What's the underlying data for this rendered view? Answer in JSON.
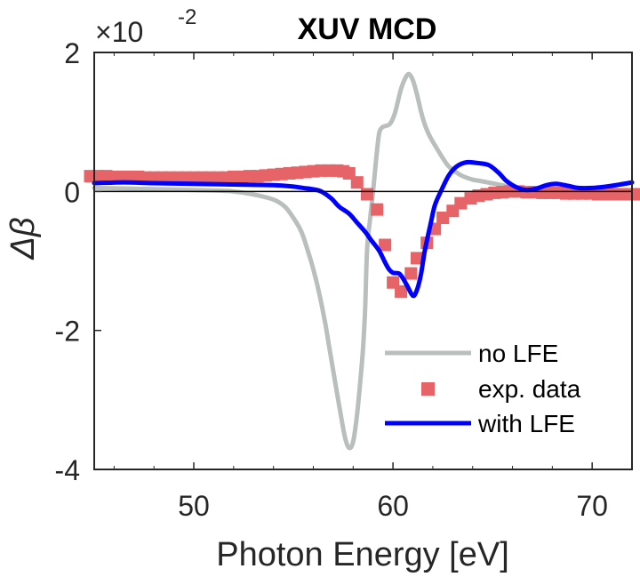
{
  "chart_data": {
    "type": "line",
    "title": "XUV MCD",
    "xlabel": "Photon Energy [eV]",
    "ylabel": "Δβ",
    "y_multiplier_label": {
      "base": "×10",
      "exponent": "-2"
    },
    "xlim": [
      45,
      72
    ],
    "ylim": [
      -4,
      2
    ],
    "xticks": [
      50,
      60,
      70
    ],
    "xtick_labels": [
      "50",
      "60",
      "70"
    ],
    "xminor_step": 1.2,
    "yticks": [
      -4,
      -2,
      0,
      2
    ],
    "ytick_labels": [
      "-4",
      "-2",
      "0",
      "2"
    ],
    "zero_line": true,
    "grid": false,
    "legend_position": "bottom-right",
    "series": [
      {
        "name": "no LFE",
        "style": "line",
        "color": "#b9bfbd",
        "x": [
          45,
          47,
          50,
          52,
          53.7,
          54.5,
          55.0,
          55.4,
          55.7,
          56.0,
          56.3,
          56.6,
          56.8,
          57.1,
          57.4,
          57.6,
          57.8,
          58.0,
          58.2,
          58.4,
          58.5,
          58.6,
          58.7,
          58.85,
          59.0,
          59.1,
          59.15,
          59.3,
          59.45,
          59.6,
          59.8,
          59.95,
          60.1,
          60.25,
          60.4,
          60.6,
          60.8,
          61.0,
          61.2,
          61.5,
          61.8,
          62.2,
          62.5,
          62.8,
          63.2,
          63.5,
          64.0,
          64.4,
          65.3,
          66.2,
          67.5,
          69,
          72
        ],
        "values": [
          0.05,
          0.04,
          0.02,
          0.0,
          -0.09,
          -0.2,
          -0.38,
          -0.58,
          -0.83,
          -1.12,
          -1.47,
          -1.9,
          -2.24,
          -2.75,
          -3.25,
          -3.55,
          -3.69,
          -3.6,
          -3.2,
          -2.6,
          -2.24,
          -1.7,
          -0.83,
          -0.4,
          0.0,
          0.3,
          0.45,
          0.83,
          0.92,
          0.94,
          0.96,
          1.02,
          1.13,
          1.3,
          1.47,
          1.62,
          1.69,
          1.6,
          1.4,
          1.05,
          0.82,
          0.62,
          0.48,
          0.36,
          0.27,
          0.22,
          0.17,
          0.15,
          0.1,
          0.05,
          0.02,
          0.01,
          0.0
        ]
      },
      {
        "name": "exp. data",
        "style": "square-markers",
        "color": "#e66467",
        "x": [
          44.8,
          45.2,
          45.6,
          46.0,
          46.4,
          46.8,
          47.2,
          47.6,
          48.0,
          48.4,
          48.8,
          49.2,
          49.6,
          50.0,
          50.4,
          50.8,
          51.2,
          51.6,
          52.0,
          52.4,
          52.8,
          53.2,
          53.6,
          54.0,
          54.4,
          54.8,
          55.2,
          55.6,
          56.0,
          56.4,
          56.8,
          57.2,
          57.5,
          57.8,
          58.2,
          58.7,
          59.2,
          59.6,
          60.0,
          60.4,
          60.9,
          61.2,
          61.7,
          62.1,
          62.5,
          63.0,
          63.4,
          63.9,
          64.3,
          64.7,
          65.1,
          65.5,
          65.9,
          66.3,
          66.7,
          67.1,
          67.5,
          67.9,
          68.3,
          68.7,
          69.1,
          69.5,
          69.9,
          70.3,
          70.7,
          71.1,
          71.5,
          71.9,
          72.2
        ],
        "values": [
          0.22,
          0.22,
          0.22,
          0.21,
          0.21,
          0.21,
          0.21,
          0.2,
          0.2,
          0.2,
          0.2,
          0.2,
          0.2,
          0.2,
          0.2,
          0.2,
          0.2,
          0.2,
          0.21,
          0.21,
          0.22,
          0.22,
          0.23,
          0.24,
          0.25,
          0.26,
          0.27,
          0.28,
          0.29,
          0.3,
          0.3,
          0.3,
          0.29,
          0.26,
          0.13,
          -0.04,
          -0.26,
          -0.77,
          -1.31,
          -1.44,
          -1.18,
          -0.96,
          -0.74,
          -0.54,
          -0.38,
          -0.28,
          -0.17,
          -0.1,
          -0.06,
          -0.04,
          -0.02,
          -0.01,
          0.0,
          0.0,
          -0.01,
          -0.01,
          -0.02,
          -0.02,
          -0.02,
          -0.03,
          -0.03,
          -0.03,
          -0.03,
          -0.04,
          -0.04,
          -0.04,
          -0.04,
          -0.04,
          -0.04
        ]
      },
      {
        "name": "with LFE",
        "style": "line",
        "color": "#0000ff",
        "x": [
          45,
          46.5,
          48,
          50,
          52,
          54,
          55.0,
          55.5,
          56.0,
          56.4,
          56.9,
          57.3,
          57.8,
          58.2,
          58.6,
          58.9,
          59.3,
          59.6,
          59.8,
          60.0,
          60.3,
          60.5,
          60.7,
          61.0,
          61.2,
          61.4,
          61.6,
          61.9,
          62.1,
          62.4,
          62.8,
          63.2,
          63.7,
          64.2,
          64.8,
          65.3,
          65.7,
          66.2,
          66.7,
          67.2,
          67.7,
          68.2,
          68.8,
          69.3,
          70.0,
          70.7,
          71.4,
          72.0
        ],
        "values": [
          0.12,
          0.13,
          0.12,
          0.11,
          0.1,
          0.09,
          0.07,
          0.05,
          0.03,
          0.0,
          -0.1,
          -0.22,
          -0.32,
          -0.45,
          -0.58,
          -0.7,
          -0.85,
          -1.02,
          -1.12,
          -1.17,
          -1.18,
          -1.25,
          -1.35,
          -1.5,
          -1.42,
          -1.2,
          -0.85,
          -0.45,
          -0.2,
          0.0,
          0.23,
          0.36,
          0.42,
          0.41,
          0.38,
          0.27,
          0.15,
          0.06,
          0.02,
          0.04,
          0.09,
          0.11,
          0.08,
          0.05,
          0.05,
          0.07,
          0.1,
          0.13
        ]
      }
    ]
  }
}
